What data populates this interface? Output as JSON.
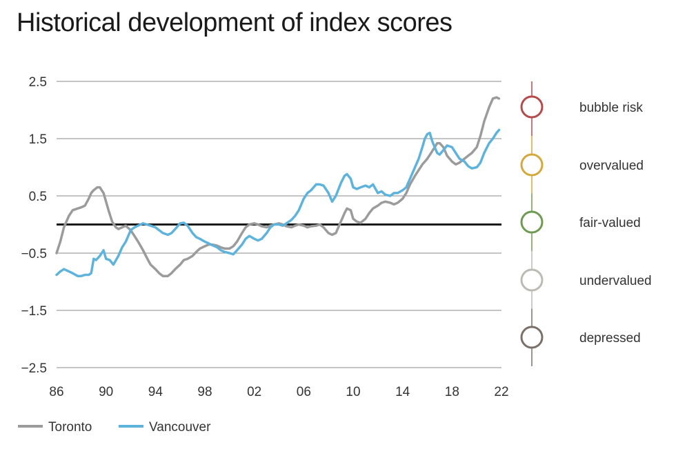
{
  "chart_data": {
    "type": "line",
    "title": "Historical development of index scores",
    "xlabel": "",
    "ylabel": "",
    "xlim": [
      1986,
      2022
    ],
    "ylim": [
      -2.5,
      2.5
    ],
    "x_tick_labels": [
      "86",
      "90",
      "94",
      "98",
      "02",
      "06",
      "10",
      "14",
      "18",
      "22"
    ],
    "x_tick_values": [
      1986,
      1990,
      1994,
      1998,
      2002,
      2006,
      2010,
      2014,
      2018,
      2022
    ],
    "y_tick_labels": [
      "2.5",
      "1.5",
      "0.5",
      "−0.5",
      "−1.5",
      "−2.5"
    ],
    "y_tick_values": [
      2.5,
      1.5,
      0.5,
      -0.5,
      -1.5,
      -2.5
    ],
    "reference_line": 0,
    "series": [
      {
        "name": "Toronto",
        "color": "#9b9b9b",
        "points": [
          [
            1986.0,
            -0.5
          ],
          [
            1986.3,
            -0.3
          ],
          [
            1986.6,
            -0.05
          ],
          [
            1987.0,
            0.15
          ],
          [
            1987.3,
            0.25
          ],
          [
            1987.7,
            0.28
          ],
          [
            1988.0,
            0.3
          ],
          [
            1988.3,
            0.33
          ],
          [
            1988.6,
            0.45
          ],
          [
            1988.8,
            0.55
          ],
          [
            1989.0,
            0.6
          ],
          [
            1989.3,
            0.65
          ],
          [
            1989.5,
            0.65
          ],
          [
            1989.8,
            0.55
          ],
          [
            1990.0,
            0.4
          ],
          [
            1990.2,
            0.25
          ],
          [
            1990.5,
            0.05
          ],
          [
            1990.8,
            -0.05
          ],
          [
            1991.0,
            -0.08
          ],
          [
            1991.3,
            -0.05
          ],
          [
            1991.6,
            -0.02
          ],
          [
            1992.0,
            -0.1
          ],
          [
            1992.3,
            -0.2
          ],
          [
            1992.6,
            -0.3
          ],
          [
            1993.0,
            -0.45
          ],
          [
            1993.3,
            -0.58
          ],
          [
            1993.6,
            -0.7
          ],
          [
            1994.0,
            -0.78
          ],
          [
            1994.3,
            -0.85
          ],
          [
            1994.6,
            -0.9
          ],
          [
            1995.0,
            -0.9
          ],
          [
            1995.3,
            -0.85
          ],
          [
            1995.6,
            -0.78
          ],
          [
            1996.0,
            -0.7
          ],
          [
            1996.3,
            -0.62
          ],
          [
            1996.6,
            -0.6
          ],
          [
            1997.0,
            -0.55
          ],
          [
            1997.3,
            -0.48
          ],
          [
            1997.6,
            -0.42
          ],
          [
            1998.0,
            -0.38
          ],
          [
            1998.3,
            -0.35
          ],
          [
            1998.6,
            -0.35
          ],
          [
            1999.0,
            -0.37
          ],
          [
            1999.3,
            -0.4
          ],
          [
            1999.6,
            -0.42
          ],
          [
            2000.0,
            -0.42
          ],
          [
            2000.3,
            -0.38
          ],
          [
            2000.6,
            -0.3
          ],
          [
            2001.0,
            -0.15
          ],
          [
            2001.3,
            -0.05
          ],
          [
            2001.6,
            0.0
          ],
          [
            2002.0,
            0.02
          ],
          [
            2002.3,
            0.0
          ],
          [
            2002.6,
            -0.03
          ],
          [
            2003.0,
            -0.05
          ],
          [
            2003.3,
            -0.02
          ],
          [
            2003.6,
            0.0
          ],
          [
            2004.0,
            0.02
          ],
          [
            2004.3,
            0.0
          ],
          [
            2004.6,
            -0.03
          ],
          [
            2005.0,
            -0.05
          ],
          [
            2005.3,
            -0.02
          ],
          [
            2005.6,
            0.0
          ],
          [
            2006.0,
            -0.02
          ],
          [
            2006.3,
            -0.05
          ],
          [
            2006.6,
            -0.03
          ],
          [
            2007.0,
            -0.02
          ],
          [
            2007.3,
            0.0
          ],
          [
            2007.6,
            -0.05
          ],
          [
            2008.0,
            -0.15
          ],
          [
            2008.3,
            -0.18
          ],
          [
            2008.6,
            -0.15
          ],
          [
            2009.0,
            0.05
          ],
          [
            2009.3,
            0.2
          ],
          [
            2009.5,
            0.28
          ],
          [
            2009.8,
            0.25
          ],
          [
            2010.0,
            0.1
          ],
          [
            2010.3,
            0.05
          ],
          [
            2010.6,
            0.03
          ],
          [
            2011.0,
            0.1
          ],
          [
            2011.3,
            0.2
          ],
          [
            2011.6,
            0.28
          ],
          [
            2012.0,
            0.33
          ],
          [
            2012.3,
            0.38
          ],
          [
            2012.6,
            0.4
          ],
          [
            2013.0,
            0.38
          ],
          [
            2013.3,
            0.35
          ],
          [
            2013.6,
            0.38
          ],
          [
            2014.0,
            0.45
          ],
          [
            2014.3,
            0.55
          ],
          [
            2014.6,
            0.7
          ],
          [
            2015.0,
            0.85
          ],
          [
            2015.3,
            0.95
          ],
          [
            2015.6,
            1.05
          ],
          [
            2016.0,
            1.15
          ],
          [
            2016.3,
            1.25
          ],
          [
            2016.6,
            1.35
          ],
          [
            2016.8,
            1.42
          ],
          [
            2017.0,
            1.42
          ],
          [
            2017.3,
            1.35
          ],
          [
            2017.6,
            1.2
          ],
          [
            2018.0,
            1.1
          ],
          [
            2018.3,
            1.05
          ],
          [
            2018.6,
            1.08
          ],
          [
            2019.0,
            1.15
          ],
          [
            2019.3,
            1.2
          ],
          [
            2019.6,
            1.25
          ],
          [
            2020.0,
            1.35
          ],
          [
            2020.3,
            1.55
          ],
          [
            2020.6,
            1.8
          ],
          [
            2021.0,
            2.05
          ],
          [
            2021.3,
            2.2
          ],
          [
            2021.6,
            2.22
          ],
          [
            2021.8,
            2.2
          ]
        ]
      },
      {
        "name": "Vancouver",
        "color": "#5eb3dc",
        "points": [
          [
            1986.0,
            -0.88
          ],
          [
            1986.3,
            -0.82
          ],
          [
            1986.6,
            -0.78
          ],
          [
            1987.0,
            -0.82
          ],
          [
            1987.3,
            -0.85
          ],
          [
            1987.7,
            -0.9
          ],
          [
            1988.0,
            -0.9
          ],
          [
            1988.3,
            -0.88
          ],
          [
            1988.6,
            -0.88
          ],
          [
            1988.8,
            -0.85
          ],
          [
            1989.0,
            -0.6
          ],
          [
            1989.2,
            -0.62
          ],
          [
            1989.5,
            -0.55
          ],
          [
            1989.8,
            -0.45
          ],
          [
            1990.0,
            -0.6
          ],
          [
            1990.3,
            -0.62
          ],
          [
            1990.6,
            -0.7
          ],
          [
            1991.0,
            -0.55
          ],
          [
            1991.3,
            -0.4
          ],
          [
            1991.6,
            -0.3
          ],
          [
            1992.0,
            -0.1
          ],
          [
            1992.3,
            -0.05
          ],
          [
            1992.6,
            -0.02
          ],
          [
            1993.0,
            0.02
          ],
          [
            1993.3,
            0.0
          ],
          [
            1993.6,
            -0.02
          ],
          [
            1994.0,
            -0.05
          ],
          [
            1994.3,
            -0.1
          ],
          [
            1994.6,
            -0.15
          ],
          [
            1995.0,
            -0.18
          ],
          [
            1995.3,
            -0.15
          ],
          [
            1995.6,
            -0.08
          ],
          [
            1996.0,
            0.02
          ],
          [
            1996.3,
            0.03
          ],
          [
            1996.6,
            -0.02
          ],
          [
            1997.0,
            -0.15
          ],
          [
            1997.3,
            -0.22
          ],
          [
            1997.6,
            -0.25
          ],
          [
            1998.0,
            -0.3
          ],
          [
            1998.3,
            -0.33
          ],
          [
            1998.6,
            -0.36
          ],
          [
            1999.0,
            -0.4
          ],
          [
            1999.3,
            -0.45
          ],
          [
            1999.6,
            -0.48
          ],
          [
            2000.0,
            -0.5
          ],
          [
            2000.3,
            -0.52
          ],
          [
            2000.6,
            -0.45
          ],
          [
            2001.0,
            -0.35
          ],
          [
            2001.3,
            -0.25
          ],
          [
            2001.6,
            -0.2
          ],
          [
            2002.0,
            -0.25
          ],
          [
            2002.3,
            -0.28
          ],
          [
            2002.6,
            -0.25
          ],
          [
            2003.0,
            -0.15
          ],
          [
            2003.3,
            -0.05
          ],
          [
            2003.6,
            0.0
          ],
          [
            2004.0,
            0.0
          ],
          [
            2004.3,
            -0.02
          ],
          [
            2004.6,
            0.02
          ],
          [
            2005.0,
            0.08
          ],
          [
            2005.3,
            0.15
          ],
          [
            2005.6,
            0.25
          ],
          [
            2006.0,
            0.45
          ],
          [
            2006.3,
            0.55
          ],
          [
            2006.6,
            0.6
          ],
          [
            2007.0,
            0.7
          ],
          [
            2007.3,
            0.7
          ],
          [
            2007.6,
            0.68
          ],
          [
            2008.0,
            0.55
          ],
          [
            2008.3,
            0.4
          ],
          [
            2008.6,
            0.5
          ],
          [
            2009.0,
            0.72
          ],
          [
            2009.3,
            0.85
          ],
          [
            2009.5,
            0.88
          ],
          [
            2009.8,
            0.8
          ],
          [
            2010.0,
            0.65
          ],
          [
            2010.3,
            0.62
          ],
          [
            2010.6,
            0.65
          ],
          [
            2011.0,
            0.68
          ],
          [
            2011.3,
            0.65
          ],
          [
            2011.6,
            0.7
          ],
          [
            2012.0,
            0.55
          ],
          [
            2012.3,
            0.58
          ],
          [
            2012.6,
            0.52
          ],
          [
            2013.0,
            0.5
          ],
          [
            2013.3,
            0.55
          ],
          [
            2013.6,
            0.55
          ],
          [
            2014.0,
            0.6
          ],
          [
            2014.3,
            0.65
          ],
          [
            2014.6,
            0.8
          ],
          [
            2015.0,
            1.0
          ],
          [
            2015.3,
            1.15
          ],
          [
            2015.6,
            1.35
          ],
          [
            2015.8,
            1.5
          ],
          [
            2016.0,
            1.58
          ],
          [
            2016.2,
            1.6
          ],
          [
            2016.4,
            1.45
          ],
          [
            2016.6,
            1.35
          ],
          [
            2016.8,
            1.25
          ],
          [
            2017.0,
            1.22
          ],
          [
            2017.3,
            1.3
          ],
          [
            2017.6,
            1.38
          ],
          [
            2018.0,
            1.35
          ],
          [
            2018.3,
            1.25
          ],
          [
            2018.6,
            1.15
          ],
          [
            2019.0,
            1.1
          ],
          [
            2019.3,
            1.02
          ],
          [
            2019.6,
            0.98
          ],
          [
            2020.0,
            1.0
          ],
          [
            2020.3,
            1.08
          ],
          [
            2020.6,
            1.25
          ],
          [
            2021.0,
            1.42
          ],
          [
            2021.3,
            1.5
          ],
          [
            2021.6,
            1.6
          ],
          [
            2021.8,
            1.65
          ]
        ]
      }
    ],
    "risk_scale": [
      {
        "label": "bubble risk",
        "color": "#b54a4a"
      },
      {
        "label": "overvalued",
        "color": "#d4a83a"
      },
      {
        "label": "fair-valued",
        "color": "#6f9a52"
      },
      {
        "label": "undervalued",
        "color": "#bcbab5"
      },
      {
        "label": "depressed",
        "color": "#7a7068"
      }
    ],
    "legend": [
      {
        "label": "Toronto",
        "color": "#9b9b9b"
      },
      {
        "label": "Vancouver",
        "color": "#5eb3dc"
      }
    ]
  }
}
